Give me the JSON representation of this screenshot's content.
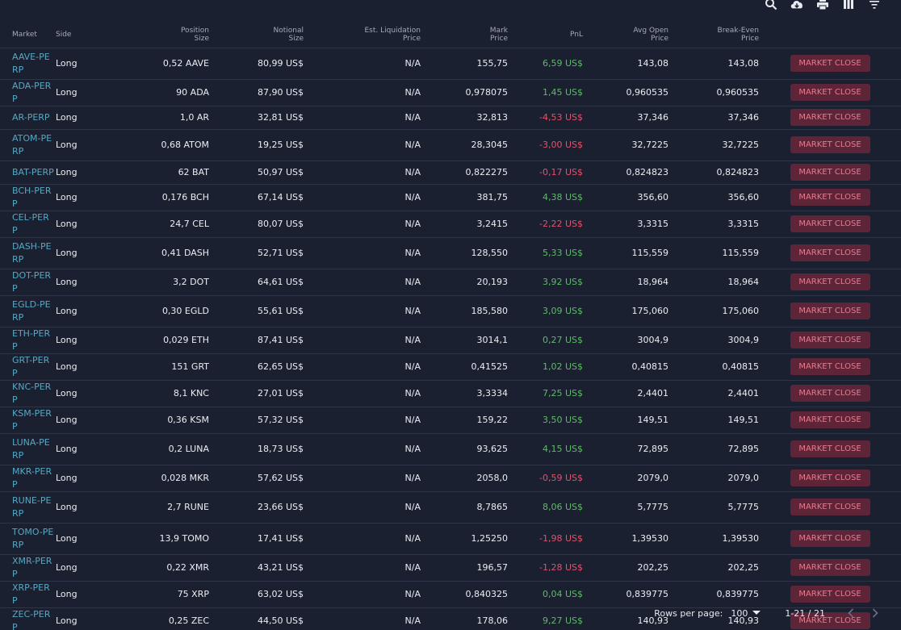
{
  "toolbar": {
    "icons": [
      "search-icon",
      "cloud-download-icon",
      "print-icon",
      "view-columns-icon",
      "filter-list-icon"
    ]
  },
  "columns": [
    "Market",
    "Side",
    "Position Size",
    "Notional Size",
    "Est. Liquidation Price",
    "Mark Price",
    "PnL",
    "Avg Open Price",
    "Break-Even Price",
    ""
  ],
  "colors": {
    "background": "#1b2030",
    "market_link": "#57a8c3",
    "positive": "#5dbb67",
    "negative": "#e0536b",
    "close_button_bg": "#5e2438",
    "close_button_text": "#e97b90"
  },
  "rows": [
    {
      "market": "AAVE-PERP",
      "side": "Long",
      "position_size": "0,52 AAVE",
      "notional_size": "80,99 US$",
      "est_liq_price": "N/A",
      "mark_price": "155,75",
      "pnl": "6,59 US$",
      "pnl_sign": "pos",
      "avg_open_price": "143,08",
      "break_even_price": "143,08",
      "action": "MARKET CLOSE"
    },
    {
      "market": "ADA-PERP",
      "side": "Long",
      "position_size": "90 ADA",
      "notional_size": "87,90 US$",
      "est_liq_price": "N/A",
      "mark_price": "0,978075",
      "pnl": "1,45 US$",
      "pnl_sign": "pos",
      "avg_open_price": "0,960535",
      "break_even_price": "0,960535",
      "action": "MARKET CLOSE"
    },
    {
      "market": "AR-PERP",
      "side": "Long",
      "position_size": "1,0 AR",
      "notional_size": "32,81 US$",
      "est_liq_price": "N/A",
      "mark_price": "32,813",
      "pnl": "-4,53 US$",
      "pnl_sign": "neg",
      "avg_open_price": "37,346",
      "break_even_price": "37,346",
      "action": "MARKET CLOSE"
    },
    {
      "market": "ATOM-PERP",
      "side": "Long",
      "position_size": "0,68 ATOM",
      "notional_size": "19,25 US$",
      "est_liq_price": "N/A",
      "mark_price": "28,3045",
      "pnl": "-3,00 US$",
      "pnl_sign": "neg",
      "avg_open_price": "32,7225",
      "break_even_price": "32,7225",
      "action": "MARKET CLOSE"
    },
    {
      "market": "BAT-PERP",
      "side": "Long",
      "position_size": "62 BAT",
      "notional_size": "50,97 US$",
      "est_liq_price": "N/A",
      "mark_price": "0,822275",
      "pnl": "-0,17 US$",
      "pnl_sign": "neg",
      "avg_open_price": "0,824823",
      "break_even_price": "0,824823",
      "action": "MARKET CLOSE"
    },
    {
      "market": "BCH-PERP",
      "side": "Long",
      "position_size": "0,176 BCH",
      "notional_size": "67,14 US$",
      "est_liq_price": "N/A",
      "mark_price": "381,75",
      "pnl": "4,38 US$",
      "pnl_sign": "pos",
      "avg_open_price": "356,60",
      "break_even_price": "356,60",
      "action": "MARKET CLOSE"
    },
    {
      "market": "CEL-PERP",
      "side": "Long",
      "position_size": "24,7 CEL",
      "notional_size": "80,07 US$",
      "est_liq_price": "N/A",
      "mark_price": "3,2415",
      "pnl": "-2,22 US$",
      "pnl_sign": "neg",
      "avg_open_price": "3,3315",
      "break_even_price": "3,3315",
      "action": "MARKET CLOSE"
    },
    {
      "market": "DASH-PERP",
      "side": "Long",
      "position_size": "0,41 DASH",
      "notional_size": "52,71 US$",
      "est_liq_price": "N/A",
      "mark_price": "128,550",
      "pnl": "5,33 US$",
      "pnl_sign": "pos",
      "avg_open_price": "115,559",
      "break_even_price": "115,559",
      "action": "MARKET CLOSE"
    },
    {
      "market": "DOT-PERP",
      "side": "Long",
      "position_size": "3,2 DOT",
      "notional_size": "64,61 US$",
      "est_liq_price": "N/A",
      "mark_price": "20,193",
      "pnl": "3,92 US$",
      "pnl_sign": "pos",
      "avg_open_price": "18,964",
      "break_even_price": "18,964",
      "action": "MARKET CLOSE"
    },
    {
      "market": "EGLD-PERP",
      "side": "Long",
      "position_size": "0,30 EGLD",
      "notional_size": "55,61 US$",
      "est_liq_price": "N/A",
      "mark_price": "185,580",
      "pnl": "3,09 US$",
      "pnl_sign": "pos",
      "avg_open_price": "175,060",
      "break_even_price": "175,060",
      "action": "MARKET CLOSE"
    },
    {
      "market": "ETH-PERP",
      "side": "Long",
      "position_size": "0,029 ETH",
      "notional_size": "87,41 US$",
      "est_liq_price": "N/A",
      "mark_price": "3014,1",
      "pnl": "0,27 US$",
      "pnl_sign": "pos",
      "avg_open_price": "3004,9",
      "break_even_price": "3004,9",
      "action": "MARKET CLOSE"
    },
    {
      "market": "GRT-PERP",
      "side": "Long",
      "position_size": "151 GRT",
      "notional_size": "62,65 US$",
      "est_liq_price": "N/A",
      "mark_price": "0,41525",
      "pnl": "1,02 US$",
      "pnl_sign": "pos",
      "avg_open_price": "0,40815",
      "break_even_price": "0,40815",
      "action": "MARKET CLOSE"
    },
    {
      "market": "KNC-PERP",
      "side": "Long",
      "position_size": "8,1 KNC",
      "notional_size": "27,01 US$",
      "est_liq_price": "N/A",
      "mark_price": "3,3334",
      "pnl": "7,25 US$",
      "pnl_sign": "pos",
      "avg_open_price": "2,4401",
      "break_even_price": "2,4401",
      "action": "MARKET CLOSE"
    },
    {
      "market": "KSM-PERP",
      "side": "Long",
      "position_size": "0,36 KSM",
      "notional_size": "57,32 US$",
      "est_liq_price": "N/A",
      "mark_price": "159,22",
      "pnl": "3,50 US$",
      "pnl_sign": "pos",
      "avg_open_price": "149,51",
      "break_even_price": "149,51",
      "action": "MARKET CLOSE"
    },
    {
      "market": "LUNA-PERP",
      "side": "Long",
      "position_size": "0,2 LUNA",
      "notional_size": "18,73 US$",
      "est_liq_price": "N/A",
      "mark_price": "93,625",
      "pnl": "4,15 US$",
      "pnl_sign": "pos",
      "avg_open_price": "72,895",
      "break_even_price": "72,895",
      "action": "MARKET CLOSE"
    },
    {
      "market": "MKR-PERP",
      "side": "Long",
      "position_size": "0,028 MKR",
      "notional_size": "57,62 US$",
      "est_liq_price": "N/A",
      "mark_price": "2058,0",
      "pnl": "-0,59 US$",
      "pnl_sign": "neg",
      "avg_open_price": "2079,0",
      "break_even_price": "2079,0",
      "action": "MARKET CLOSE"
    },
    {
      "market": "RUNE-PERP",
      "side": "Long",
      "position_size": "2,7 RUNE",
      "notional_size": "23,66 US$",
      "est_liq_price": "N/A",
      "mark_price": "8,7865",
      "pnl": "8,06 US$",
      "pnl_sign": "pos",
      "avg_open_price": "5,7775",
      "break_even_price": "5,7775",
      "action": "MARKET CLOSE"
    },
    {
      "market": "TOMO-PERP",
      "side": "Long",
      "position_size": "13,9 TOMO",
      "notional_size": "17,41 US$",
      "est_liq_price": "N/A",
      "mark_price": "1,25250",
      "pnl": "-1,98 US$",
      "pnl_sign": "neg",
      "avg_open_price": "1,39530",
      "break_even_price": "1,39530",
      "action": "MARKET CLOSE"
    },
    {
      "market": "XMR-PERP",
      "side": "Long",
      "position_size": "0,22 XMR",
      "notional_size": "43,21 US$",
      "est_liq_price": "N/A",
      "mark_price": "196,57",
      "pnl": "-1,28 US$",
      "pnl_sign": "neg",
      "avg_open_price": "202,25",
      "break_even_price": "202,25",
      "action": "MARKET CLOSE"
    },
    {
      "market": "XRP-PERP",
      "side": "Long",
      "position_size": "75 XRP",
      "notional_size": "63,02 US$",
      "est_liq_price": "N/A",
      "mark_price": "0,840325",
      "pnl": "0,04 US$",
      "pnl_sign": "pos",
      "avg_open_price": "0,839775",
      "break_even_price": "0,839775",
      "action": "MARKET CLOSE"
    },
    {
      "market": "ZEC-PERP",
      "side": "Long",
      "position_size": "0,25 ZEC",
      "notional_size": "44,50 US$",
      "est_liq_price": "N/A",
      "mark_price": "178,06",
      "pnl": "9,27 US$",
      "pnl_sign": "pos",
      "avg_open_price": "140,93",
      "break_even_price": "140,93",
      "action": "MARKET CLOSE"
    }
  ],
  "footer": {
    "rows_per_page_label": "Rows per page:",
    "rows_per_page_value": "100",
    "range_text": "1-21 / 21"
  }
}
